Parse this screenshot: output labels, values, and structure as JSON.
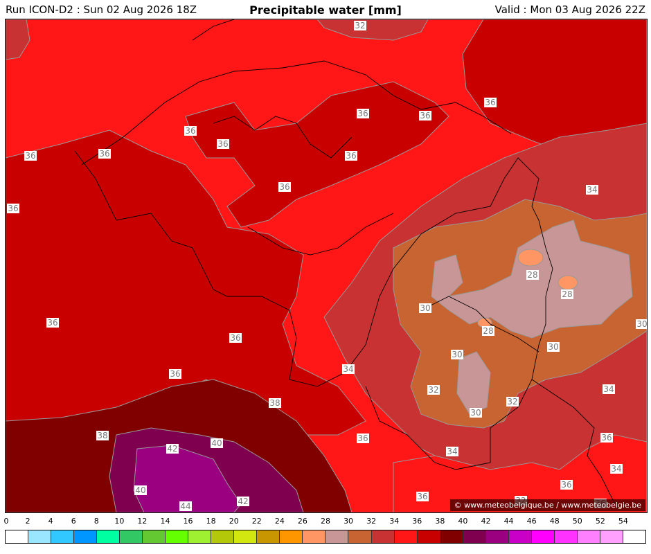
{
  "header": {
    "run": "Run ICON-D2 : Sun 02 Aug 2026 18Z",
    "title": "Precipitable water [mm]",
    "valid": "Valid : Mon 03 Aug 2026 22Z"
  },
  "credit": "© www.meteobelgique.be / www.meteobelgie.be",
  "legend": {
    "ticks": [
      "0",
      "2",
      "4",
      "6",
      "8",
      "10",
      "12",
      "14",
      "16",
      "18",
      "20",
      "22",
      "24",
      "26",
      "28",
      "30",
      "32",
      "34",
      "36",
      "38",
      "40",
      "42",
      "44",
      "46",
      "48",
      "50",
      "52",
      "54"
    ],
    "colors": [
      "#ffffff",
      "#9ae5ff",
      "#31c8ff",
      "#0096ff",
      "#00ffa0",
      "#32c864",
      "#64c832",
      "#64ff00",
      "#a0f032",
      "#b4c80a",
      "#d2e610",
      "#c89600",
      "#ff9600",
      "#ff9664",
      "#c89696",
      "#c86432",
      "#c83232",
      "#ff1616",
      "#c80000",
      "#800000",
      "#7f004f",
      "#9a0080",
      "#c800c8",
      "#ff00ff",
      "#ff32ff",
      "#ff80ff",
      "#ffa0ff",
      "#ffffff"
    ]
  },
  "map": {
    "colors": {
      "c28": "#ff9664",
      "c30": "#c89696",
      "c32": "#c86432",
      "c34": "#c83232",
      "c36": "#ff1616",
      "c38": "#c80000",
      "c40": "#800000",
      "c42": "#7f004f",
      "c44": "#9a0080"
    },
    "labels": [
      {
        "id": "l1",
        "text": "32"
      },
      {
        "id": "l2",
        "text": "36"
      },
      {
        "id": "l3",
        "text": "36"
      },
      {
        "id": "l4",
        "text": "36"
      },
      {
        "id": "l5",
        "text": "36"
      },
      {
        "id": "l6",
        "text": "36"
      },
      {
        "id": "l7",
        "text": "36"
      },
      {
        "id": "l8",
        "text": "36"
      },
      {
        "id": "l9",
        "text": "36"
      },
      {
        "id": "l10",
        "text": "36"
      },
      {
        "id": "l11",
        "text": "36"
      },
      {
        "id": "l12",
        "text": "34"
      },
      {
        "id": "l13",
        "text": "28"
      },
      {
        "id": "l14",
        "text": "28"
      },
      {
        "id": "l15",
        "text": "28"
      },
      {
        "id": "l16",
        "text": "30"
      },
      {
        "id": "l17",
        "text": "30"
      },
      {
        "id": "l18",
        "text": "30"
      },
      {
        "id": "l19",
        "text": "30"
      },
      {
        "id": "l20",
        "text": "30"
      },
      {
        "id": "l21",
        "text": "36"
      },
      {
        "id": "l22",
        "text": "36"
      },
      {
        "id": "l23",
        "text": "36"
      },
      {
        "id": "l24",
        "text": "34"
      },
      {
        "id": "l25",
        "text": "32"
      },
      {
        "id": "l26",
        "text": "32"
      },
      {
        "id": "l27",
        "text": "34"
      },
      {
        "id": "l28",
        "text": "38"
      },
      {
        "id": "l29",
        "text": "38"
      },
      {
        "id": "l30",
        "text": "40"
      },
      {
        "id": "l31",
        "text": "42"
      },
      {
        "id": "l32",
        "text": "40"
      },
      {
        "id": "l33",
        "text": "44"
      },
      {
        "id": "l34",
        "text": "42"
      },
      {
        "id": "l35",
        "text": "36"
      },
      {
        "id": "l36",
        "text": "34"
      },
      {
        "id": "l37",
        "text": "36"
      },
      {
        "id": "l38",
        "text": "34"
      },
      {
        "id": "l39",
        "text": "36"
      },
      {
        "id": "l40",
        "text": "36"
      },
      {
        "id": "l41",
        "text": "32"
      },
      {
        "id": "l42",
        "text": "36"
      },
      {
        "id": "l43",
        "text": "36"
      }
    ]
  }
}
